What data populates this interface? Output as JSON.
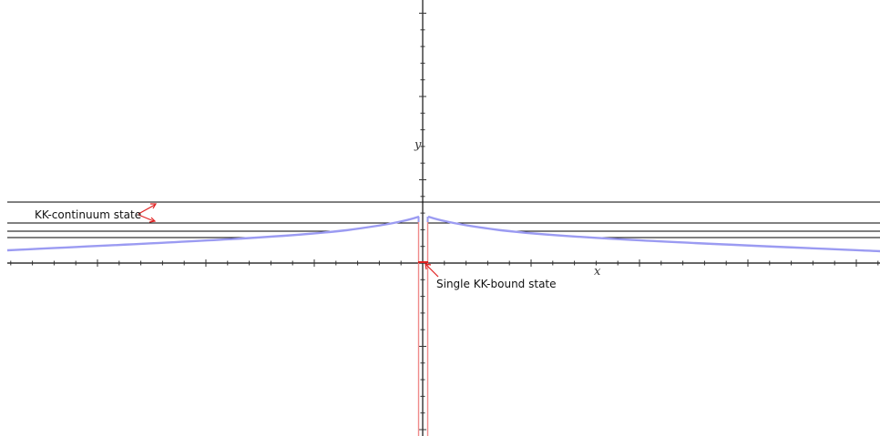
{
  "annotations": {
    "continuum_label": "KK-continuum state",
    "bound_label": "Single KK-bound state"
  },
  "axes": {
    "x_label": "x",
    "y_label": "y"
  },
  "colors": {
    "axis": "#333333",
    "level_line": "#000000",
    "potential_curve": "#9b9bf2",
    "bound_wall": "#f08a8a",
    "arrow": "#e02020"
  }
}
